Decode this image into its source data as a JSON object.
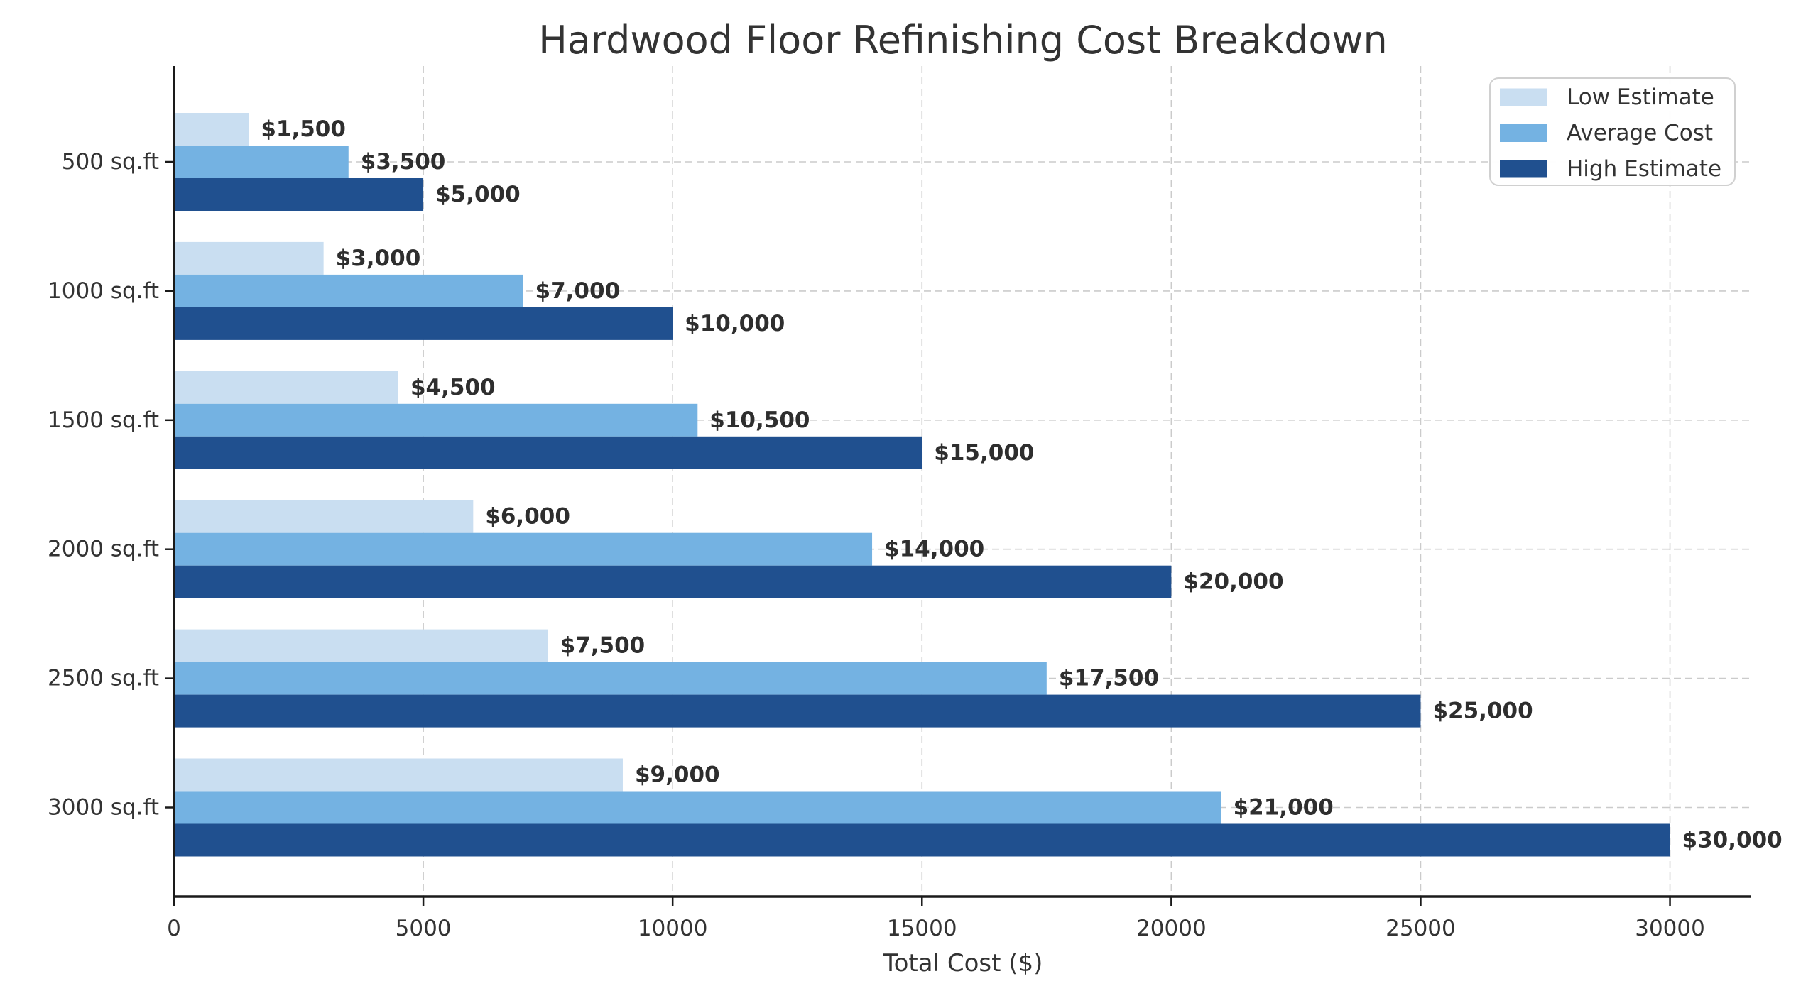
{
  "chart_data": {
    "type": "bar",
    "orientation": "horizontal",
    "title": "Hardwood Floor Refinishing Cost Breakdown",
    "xlabel": "Total Cost ($)",
    "ylabel": "",
    "categories": [
      "500 sq.ft",
      "1000 sq.ft",
      "1500 sq.ft",
      "2000 sq.ft",
      "2500 sq.ft",
      "3000 sq.ft"
    ],
    "series": [
      {
        "name": "Low Estimate",
        "color": "#c9def1",
        "values": [
          1500,
          3000,
          4500,
          6000,
          7500,
          9000
        ],
        "value_labels": [
          "$1,500",
          "$3,000",
          "$4,500",
          "$6,000",
          "$7,500",
          "$9,000"
        ]
      },
      {
        "name": "Average Cost",
        "color": "#74b2e2",
        "values": [
          3500,
          7000,
          10500,
          14000,
          17500,
          21000
        ],
        "value_labels": [
          "$3,500",
          "$7,000",
          "$10,500",
          "$14,000",
          "$17,500",
          "$21,000"
        ]
      },
      {
        "name": "High Estimate",
        "color": "#20508f",
        "values": [
          5000,
          10000,
          15000,
          20000,
          25000,
          30000
        ],
        "value_labels": [
          "$5,000",
          "$10,000",
          "$15,000",
          "$20,000",
          "$25,000",
          "$30,000"
        ]
      }
    ],
    "xticks": {
      "values": [
        0,
        5000,
        10000,
        15000,
        20000,
        25000,
        30000
      ],
      "labels": [
        "0",
        "5000",
        "10000",
        "15000",
        "20000",
        "25000",
        "30000"
      ]
    },
    "xlim": [
      0,
      31630
    ],
    "grid": true,
    "grid_style": "dashed",
    "legend_position": "upper right",
    "colors": {
      "text": "#333333",
      "value_label_text": "#2e2e2e",
      "grid": "#cbcbcb",
      "spine": "#1a1a1a",
      "background": "#ffffff",
      "legend_border": "#d0d0d0",
      "legend_fill": "#ffffff"
    }
  }
}
